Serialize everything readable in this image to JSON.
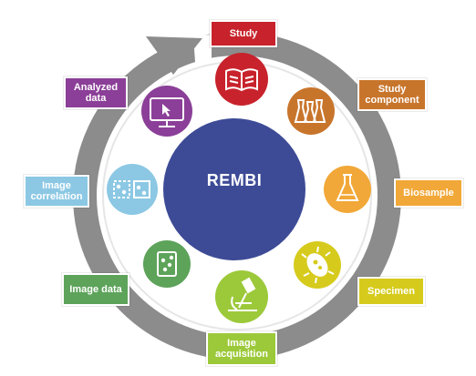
{
  "center": {
    "label": "REMBI",
    "color": "#3d4b96"
  },
  "ring": {
    "color": "#8c8c8c",
    "inner_color": "#6f6f6f"
  },
  "stages": [
    {
      "id": "study",
      "label": "Study",
      "color": "#c8232c",
      "icon": "book-icon"
    },
    {
      "id": "study-component",
      "label": "Study component",
      "color": "#c8752c",
      "icon": "flasks-icon"
    },
    {
      "id": "biosample",
      "label": "Biosample",
      "color": "#f1a838",
      "icon": "erlenmeyer-flask-icon"
    },
    {
      "id": "specimen",
      "label": "Specimen",
      "color": "#d6cb1c",
      "icon": "bacterium-icon"
    },
    {
      "id": "image-acquisition",
      "label": "Image acquisition",
      "color": "#9cc93a",
      "icon": "microscope-icon"
    },
    {
      "id": "image-data",
      "label": "Image data",
      "color": "#5da35a",
      "icon": "image-file-icon"
    },
    {
      "id": "image-correlation",
      "label": "Image correlation",
      "color": "#8cc8e4",
      "icon": "image-compare-icon"
    },
    {
      "id": "analyzed-data",
      "label": "Analyzed data",
      "color": "#8b3f98",
      "icon": "monitor-cursor-icon"
    }
  ]
}
